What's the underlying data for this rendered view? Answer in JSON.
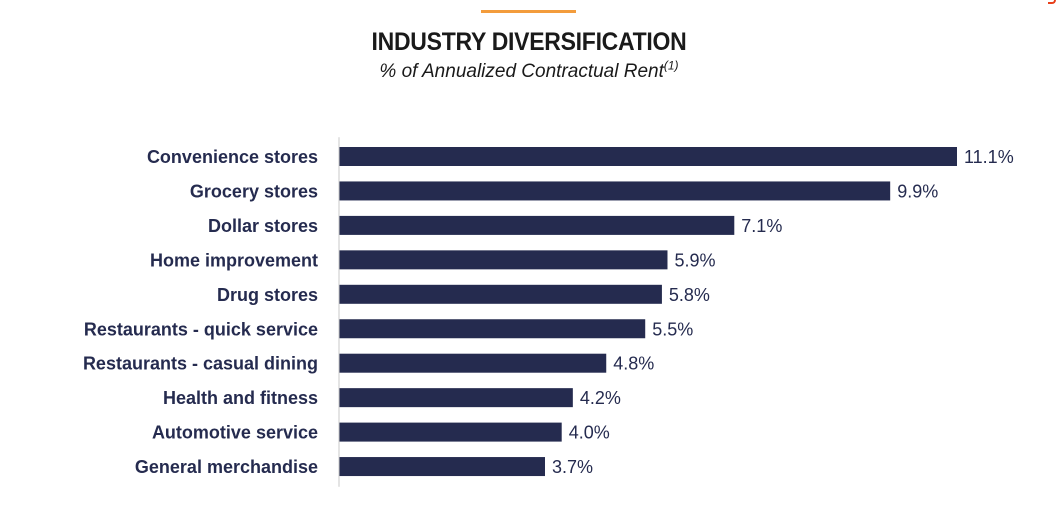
{
  "page": {
    "title": "INDUSTRY DIVERSIFICATION",
    "subtitle": "% of Annualized Contractual Rent",
    "subtitle_footnote": "(1)"
  },
  "colors": {
    "bar": "#252b4f",
    "accent": "#f39c3c",
    "axis": "#c8c8c8"
  },
  "chart_data": {
    "type": "bar",
    "orientation": "horizontal",
    "title": "INDUSTRY DIVERSIFICATION",
    "subtitle": "% of Annualized Contractual Rent(1)",
    "xlabel": "",
    "ylabel": "",
    "xlim": [
      0,
      11.1
    ],
    "grid": false,
    "legend": "none",
    "categories": [
      "Convenience stores",
      "Grocery stores",
      "Dollar stores",
      "Home improvement",
      "Drug stores",
      "Restaurants - quick service",
      "Restaurants - casual dining",
      "Health and fitness",
      "Automotive service",
      "General merchandise"
    ],
    "values": [
      11.1,
      9.9,
      7.1,
      5.9,
      5.8,
      5.5,
      4.8,
      4.2,
      4.0,
      3.7
    ],
    "value_labels": [
      "11.1%",
      "9.9%",
      "7.1%",
      "5.9%",
      "5.8%",
      "5.5%",
      "4.8%",
      "4.2%",
      "4.0%",
      "3.7%"
    ]
  }
}
